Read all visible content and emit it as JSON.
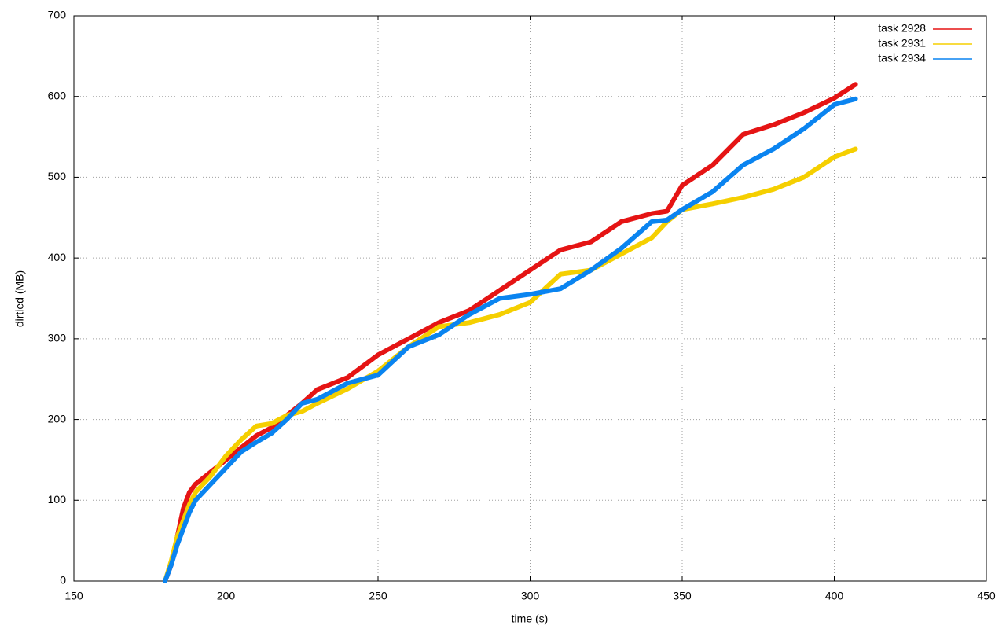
{
  "chart_data": {
    "type": "line",
    "xlabel": "time (s)",
    "ylabel": "dirtied (MB)",
    "x": [
      180,
      182,
      184,
      186,
      188,
      190,
      195,
      200,
      205,
      210,
      215,
      220,
      225,
      230,
      240,
      250,
      260,
      270,
      280,
      290,
      300,
      310,
      320,
      330,
      340,
      345,
      350,
      360,
      370,
      380,
      390,
      400,
      407
    ],
    "series": [
      {
        "name": "task 2928",
        "color": "#e51414",
        "values": [
          0,
          20,
          55,
          90,
          110,
          120,
          135,
          150,
          165,
          180,
          190,
          205,
          220,
          237,
          252,
          280,
          300,
          320,
          335,
          360,
          385,
          410,
          420,
          445,
          455,
          458,
          490,
          515,
          553,
          565,
          580,
          598,
          615
        ]
      },
      {
        "name": "task 2931",
        "color": "#f5cf00",
        "values": [
          0,
          25,
          55,
          75,
          95,
          110,
          130,
          155,
          175,
          192,
          195,
          205,
          210,
          220,
          238,
          260,
          290,
          315,
          320,
          330,
          345,
          380,
          385,
          405,
          425,
          445,
          460,
          467,
          475,
          485,
          500,
          525,
          535
        ]
      },
      {
        "name": "task 2934",
        "color": "#0a84f0",
        "values": [
          0,
          20,
          45,
          65,
          85,
          100,
          120,
          140,
          160,
          172,
          183,
          200,
          220,
          225,
          245,
          255,
          290,
          305,
          330,
          350,
          355,
          362,
          385,
          412,
          445,
          447,
          460,
          482,
          515,
          535,
          560,
          590,
          597
        ]
      }
    ],
    "xlim": [
      150,
      450
    ],
    "xticks": [
      150,
      200,
      250,
      300,
      350,
      400,
      450
    ],
    "ylim": [
      0,
      700
    ],
    "yticks": [
      0,
      100,
      200,
      300,
      400,
      500,
      600,
      700
    ],
    "grid": true,
    "legend": "top-right"
  }
}
